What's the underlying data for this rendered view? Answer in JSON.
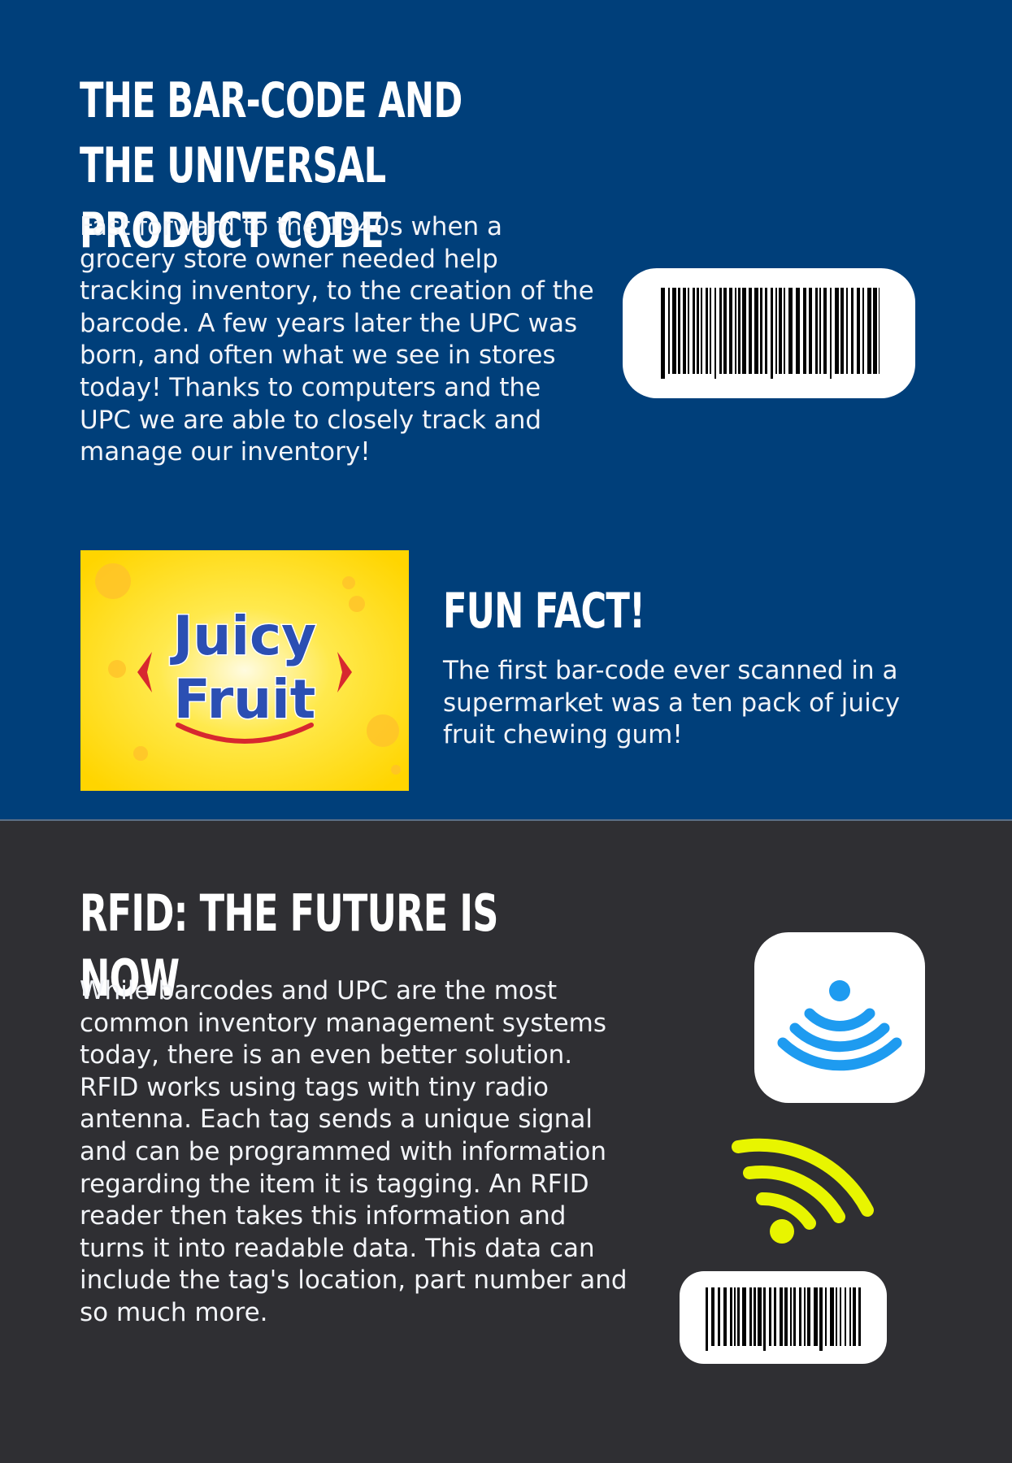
{
  "barcode_section": {
    "heading": "The Bar-Code and the Universal Product Code",
    "body": "Fast forward to the 1940s when a grocery store owner needed help tracking inventory, to the creation of the barcode. A few years later the UPC was born, and often what we see in stores today! Thanks to computers and the UPC we are able to closely track and manage our inventory!",
    "icon": "barcode-icon"
  },
  "fun_fact": {
    "heading": "Fun Fact!",
    "body": "The first bar-code ever scanned in a supermarket was a ten pack of juicy fruit chewing gum!",
    "logo": {
      "line1": "Juicy",
      "line2": "Fruit"
    }
  },
  "rfid_section": {
    "heading": "RFID: The Future is Now",
    "body": "While barcodes and UPC are the most common inventory management systems today, there is an even better solution. RFID works using tags with tiny radio antenna. Each tag sends a unique signal and can be programmed with information regarding the item it is tagging. An RFID reader then takes this information and turns it into readable data. This data can include the tag's location, part number and so much more.",
    "icons": [
      "wifi-icon",
      "signal-icon",
      "barcode-tag-icon"
    ]
  },
  "colors": {
    "top_background": "#003f7a",
    "bottom_background": "#2f2f33",
    "text": "#ffffff",
    "wifi_blue": "#1e9bf0",
    "signal_yellow": "#e8f500",
    "logo_yellow": "#ffd500",
    "logo_text_blue": "#2b4fb3",
    "logo_red": "#d7282f"
  }
}
